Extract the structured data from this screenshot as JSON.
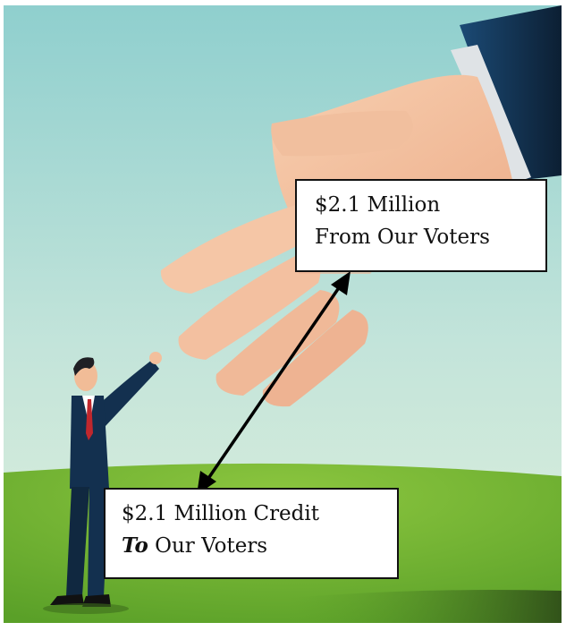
{
  "colors": {
    "sky_top": "#8fcfce",
    "sky_bottom": "#d6ecd6",
    "grass": "#6db52f",
    "grass_light": "#8cc63f",
    "skin": "#f3bf9c",
    "suit": "#13304f",
    "tie": "#c0272d",
    "arrow": "#000000"
  },
  "illustration": {
    "subjects": [
      "giant-hand-icon",
      "businessman-icon",
      "double-arrow-icon"
    ]
  },
  "from_box": {
    "line1": "$2.1 Million",
    "line2": "From Our Voters"
  },
  "to_box": {
    "line1": "$2.1 Million Credit",
    "emphasis": "To",
    "line2_rest": " Our Voters"
  }
}
